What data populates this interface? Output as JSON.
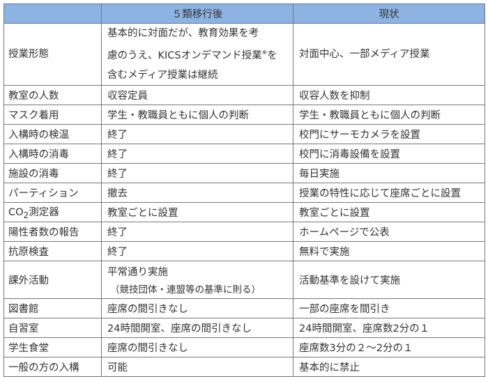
{
  "header": {
    "col0": "",
    "col1": "５類移行後",
    "col2": "現状"
  },
  "rows": [
    {
      "item": "授業形態",
      "after_lines": [
        "基本的に対面だが、教育効果を考",
        "慮のうえ、KICSオンデマンド授業",
        "を",
        "含むメディア授業は継続"
      ],
      "after_note_mark": "※",
      "current": "対面中心、一部メディア授業"
    },
    {
      "item": "教室の人数",
      "after": "収容定員",
      "current": "収容人数を抑制"
    },
    {
      "item": "マスク着用",
      "after": "学生・教職員ともに個人の判断",
      "current": "学生・教職員ともに個人の判断"
    },
    {
      "item": "入構時の検温",
      "after": "終了",
      "current": "校門にサーモカメラを設置"
    },
    {
      "item": "入構時の消毒",
      "after": "終了",
      "current": "校門に消毒設備を設置"
    },
    {
      "item": "施設の消毒",
      "after": "終了",
      "current": "毎日実施"
    },
    {
      "item": "パーティション",
      "after": "撤去",
      "current": "授業の特性に応じて座席ごとに設置"
    },
    {
      "item_prefix": "CO",
      "item_sub": "2",
      "item_suffix": "測定器",
      "after": "教室ごとに設置",
      "current": "教室ごとに設置"
    },
    {
      "item": "陽性者数の報告",
      "after": "終了",
      "current": "ホームページで公表"
    },
    {
      "item": "抗原検査",
      "after": "終了",
      "current": "無料で実施"
    },
    {
      "item": "課外活動",
      "after": "平常通り実施",
      "after_sub": "（競技団体・連盟等の基準に則る）",
      "current": "活動基準を設けて実施"
    },
    {
      "item": "図書館",
      "after": "座席の間引きなし",
      "current": "一部の座席を間引き"
    },
    {
      "item": "自習室",
      "after": "24時間開室、座席の間引きなし",
      "current": "24時間開室、座席数2分の１"
    },
    {
      "item": "学生食堂",
      "after": "座席の間引きなし",
      "current": "座席数3分の２～2分の１"
    },
    {
      "item": "一般の方の入構",
      "after": "可能",
      "current": "基本的に禁止"
    }
  ],
  "colors": {
    "header_bg": "#8db3e2",
    "border": "#777777",
    "text": "#333333"
  }
}
